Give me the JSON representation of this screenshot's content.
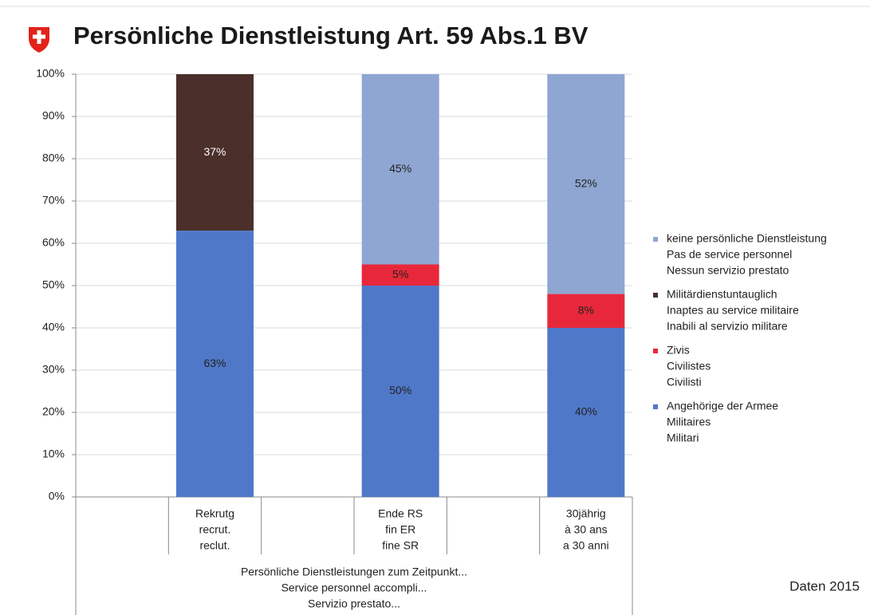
{
  "chart_data": {
    "type": "stacked_bar",
    "title": "Persönliche Dienstleistung Art. 59 Abs.1 BV",
    "categories": [
      [
        "Rekrutg",
        "recrut.",
        "reclut."
      ],
      [
        "Ende RS",
        "fin ER",
        "fine SR"
      ],
      [
        "30jährig",
        "à 30 ans",
        "a 30 anni"
      ]
    ],
    "x_label": [
      "Persönliche Dienstleistungen zum Zeitpunkt...",
      "Service personnel accompli...",
      "Servizio prestato..."
    ],
    "note": "Daten 2015",
    "series": [
      {
        "name": [
          "Angehörige der Armee",
          "Militaires",
          "Militari"
        ],
        "color": "#5078c8",
        "values": [
          63,
          50,
          40
        ],
        "value_labels": [
          "63%",
          "50%",
          "40%"
        ]
      },
      {
        "name": [
          "Zivis",
          "Civilistes",
          "Civilisti"
        ],
        "color": "#e8283a",
        "values": [
          null,
          5,
          8
        ],
        "value_labels": [
          null,
          "5%",
          "8%"
        ]
      },
      {
        "name": [
          "Militärdienstuntauglich",
          "Inaptes au service militaire",
          "Inabili al servizio militare"
        ],
        "color": "#4a2f2b",
        "values": [
          37,
          null,
          null
        ],
        "value_labels": [
          "37%",
          null,
          null
        ]
      },
      {
        "name": [
          "keine persönliche Dienstleistung",
          "Pas de service personnel",
          "Nessun servizio prestato"
        ],
        "color": "#8fa6d2",
        "values": [
          null,
          45,
          52
        ],
        "value_labels": [
          null,
          "45%",
          "52%"
        ]
      }
    ],
    "ylim": [
      0,
      100
    ],
    "yticks": [
      {
        "value": 0,
        "label": "0%"
      },
      {
        "value": 10,
        "label": "10%"
      },
      {
        "value": 20,
        "label": "20%"
      },
      {
        "value": 30,
        "label": "30%"
      },
      {
        "value": 40,
        "label": "40%"
      },
      {
        "value": 50,
        "label": "50%"
      },
      {
        "value": 60,
        "label": "60%"
      },
      {
        "value": 70,
        "label": "70%"
      },
      {
        "value": 80,
        "label": "80%"
      },
      {
        "value": 90,
        "label": "90%"
      },
      {
        "value": 100,
        "label": "100%"
      }
    ],
    "grid": true,
    "legend": "right"
  }
}
